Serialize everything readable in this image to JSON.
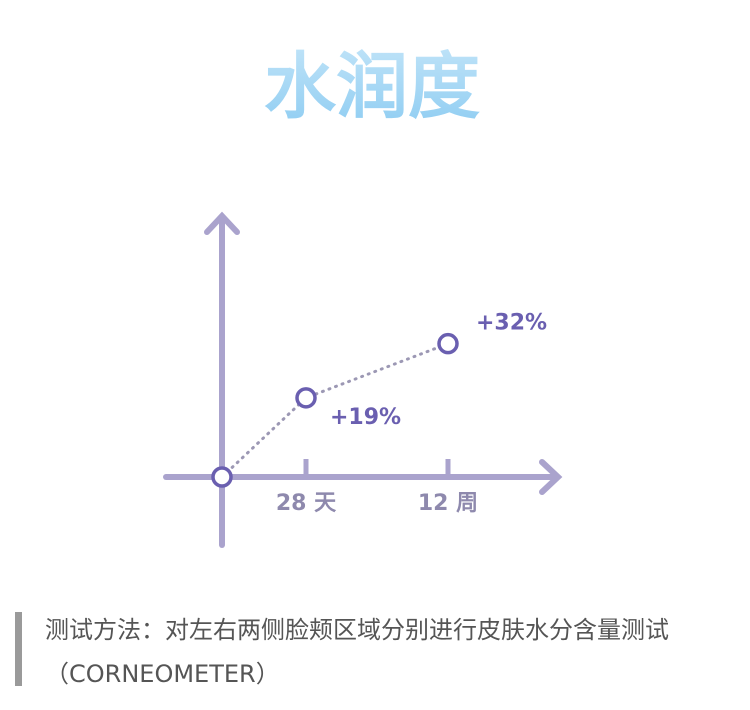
{
  "chart_data": {
    "type": "line",
    "title": "水润度",
    "categories": [
      null,
      "28 天",
      "12 周"
    ],
    "values": [
      0,
      19,
      32
    ],
    "value_labels": [
      null,
      "+19%",
      "+32%"
    ],
    "ylim": [
      0,
      60
    ],
    "color": "#6a5fb0",
    "note": "测试方法：对左右两侧脸颊区域分别进行皮肤水分含量测试（CORNEOMETER）"
  }
}
